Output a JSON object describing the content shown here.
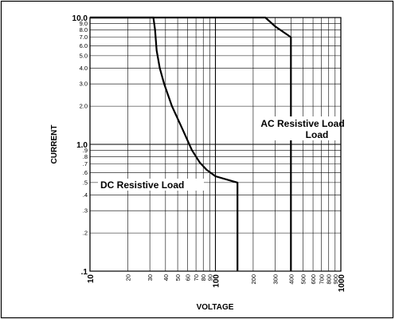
{
  "chart_data": {
    "type": "line",
    "xlabel": "VOLTAGE",
    "ylabel": "CURRENT",
    "x_scale": "log",
    "y_scale": "log",
    "xlim": [
      10,
      1000
    ],
    "ylim": [
      0.1,
      10
    ],
    "grid": true,
    "x_ticks": [
      {
        "value": 10,
        "label": "10",
        "major": true
      },
      {
        "value": 20,
        "label": "20",
        "major": false
      },
      {
        "value": 30,
        "label": "30",
        "major": false
      },
      {
        "value": 40,
        "label": "40",
        "major": false
      },
      {
        "value": 50,
        "label": "50",
        "major": false
      },
      {
        "value": 60,
        "label": "60",
        "major": false
      },
      {
        "value": 70,
        "label": "70",
        "major": false
      },
      {
        "value": 80,
        "label": "80",
        "major": false
      },
      {
        "value": 90,
        "label": "90",
        "major": false
      },
      {
        "value": 100,
        "label": "100",
        "major": true
      },
      {
        "value": 200,
        "label": "200",
        "major": false
      },
      {
        "value": 300,
        "label": "300",
        "major": false
      },
      {
        "value": 400,
        "label": "400",
        "major": false
      },
      {
        "value": 500,
        "label": "500",
        "major": false
      },
      {
        "value": 600,
        "label": "600",
        "major": false
      },
      {
        "value": 700,
        "label": "700",
        "major": false
      },
      {
        "value": 800,
        "label": "800",
        "major": false
      },
      {
        "value": 900,
        "label": "900",
        "major": false
      },
      {
        "value": 1000,
        "label": "1000",
        "major": true
      }
    ],
    "y_ticks": [
      {
        "value": 10,
        "label": "10.0",
        "major": true
      },
      {
        "value": 9,
        "label": "9.0",
        "major": false
      },
      {
        "value": 8,
        "label": "8.0",
        "major": false
      },
      {
        "value": 7,
        "label": "7.0",
        "major": false
      },
      {
        "value": 6,
        "label": "6.0",
        "major": false
      },
      {
        "value": 5,
        "label": "5.0",
        "major": false
      },
      {
        "value": 4,
        "label": "4.0",
        "major": false
      },
      {
        "value": 3,
        "label": "3.0",
        "major": false
      },
      {
        "value": 2,
        "label": "2.0",
        "major": false
      },
      {
        "value": 1,
        "label": "1.0",
        "major": true
      },
      {
        "value": 0.9,
        "label": ".9",
        "major": false
      },
      {
        "value": 0.8,
        "label": ".8",
        "major": false
      },
      {
        "value": 0.7,
        "label": ".7",
        "major": false
      },
      {
        "value": 0.6,
        "label": ".6",
        "major": false
      },
      {
        "value": 0.5,
        "label": ".5",
        "major": false
      },
      {
        "value": 0.4,
        "label": ".4",
        "major": false
      },
      {
        "value": 0.3,
        "label": ".3",
        "major": false
      },
      {
        "value": 0.2,
        "label": ".2",
        "major": false
      },
      {
        "value": 0.1,
        "label": ".1",
        "major": true
      }
    ],
    "series": [
      {
        "name": "DC Resistive Load",
        "label_lines": [
          "DC Resistive Load"
        ],
        "points": [
          [
            10,
            10
          ],
          [
            32,
            10
          ],
          [
            33,
            8
          ],
          [
            34,
            5.5
          ],
          [
            36,
            4
          ],
          [
            39,
            3
          ],
          [
            45,
            2
          ],
          [
            55,
            1.3
          ],
          [
            65,
            0.9
          ],
          [
            75,
            0.72
          ],
          [
            85,
            0.63
          ],
          [
            100,
            0.56
          ],
          [
            130,
            0.52
          ],
          [
            150,
            0.5
          ],
          [
            150,
            0.1
          ]
        ]
      },
      {
        "name": "AC Resistive Load",
        "label_lines": [
          "AC Resistive Load",
          "Load"
        ],
        "points": [
          [
            10,
            10
          ],
          [
            250,
            10
          ],
          [
            300,
            8.5
          ],
          [
            400,
            7
          ],
          [
            400,
            0.1
          ]
        ]
      }
    ]
  }
}
